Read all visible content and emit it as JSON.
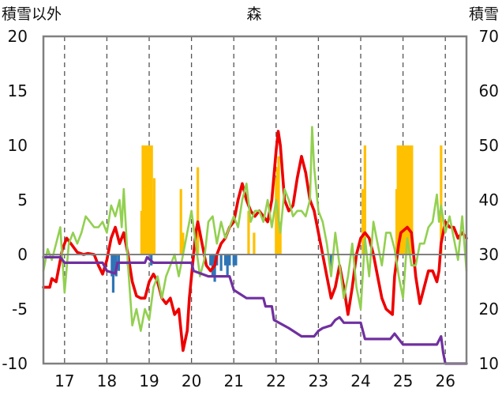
{
  "chart_data": {
    "type": "line",
    "title": "森",
    "left_axis_title": "積雪以外",
    "right_axis_title": "積雪",
    "y_left": {
      "range": [
        -10,
        20
      ],
      "ticks": [
        "-10",
        "-5",
        "0",
        "5",
        "10",
        "15",
        "20"
      ]
    },
    "y_right": {
      "range": [
        10,
        70
      ],
      "ticks": [
        "10",
        "20",
        "30",
        "40",
        "50",
        "60",
        "70"
      ]
    },
    "x": {
      "range": [
        16.5,
        26.5
      ],
      "tick_labels": [
        "17",
        "18",
        "19",
        "20",
        "21",
        "22",
        "23",
        "24",
        "25",
        "26"
      ]
    },
    "grid": {
      "vertical_dashed": true,
      "horizontal": false
    },
    "colors": {
      "red": "#ee0000",
      "green": "#92d050",
      "purple": "#7030a0",
      "orange": "#ffc000",
      "blue": "#2e75b6",
      "frame": "#808080"
    },
    "series": [
      {
        "axis": "left",
        "color_key": "red",
        "points": [
          [
            16.5,
            -3
          ],
          [
            16.65,
            -3
          ],
          [
            16.7,
            -2.2
          ],
          [
            16.8,
            -2.5
          ],
          [
            16.95,
            0.5
          ],
          [
            17.05,
            1.5
          ],
          [
            17.15,
            1
          ],
          [
            17.3,
            0.2
          ],
          [
            17.45,
            0
          ],
          [
            17.55,
            0.1
          ],
          [
            17.7,
            0
          ],
          [
            17.8,
            -1
          ],
          [
            17.9,
            -1.8
          ],
          [
            18.0,
            -0.5
          ],
          [
            18.1,
            1.5
          ],
          [
            18.2,
            2.5
          ],
          [
            18.3,
            1
          ],
          [
            18.4,
            2
          ],
          [
            18.5,
            0
          ],
          [
            18.6,
            -2.5
          ],
          [
            18.7,
            -3.8
          ],
          [
            18.8,
            -4
          ],
          [
            18.9,
            -4
          ],
          [
            19.0,
            -2.5
          ],
          [
            19.1,
            -1.8
          ],
          [
            19.2,
            -2.5
          ],
          [
            19.3,
            -4
          ],
          [
            19.4,
            -4.5
          ],
          [
            19.5,
            -4
          ],
          [
            19.6,
            -5.5
          ],
          [
            19.7,
            -5
          ],
          [
            19.8,
            -8.8
          ],
          [
            19.9,
            -7
          ],
          [
            19.95,
            -4
          ],
          [
            20.0,
            -2
          ],
          [
            20.1,
            2
          ],
          [
            20.15,
            3
          ],
          [
            20.25,
            1
          ],
          [
            20.35,
            -1
          ],
          [
            20.45,
            -1.5
          ],
          [
            20.55,
            -1
          ],
          [
            20.6,
            0
          ],
          [
            20.7,
            1
          ],
          [
            20.8,
            1.5
          ],
          [
            20.9,
            2.5
          ],
          [
            21.0,
            3
          ],
          [
            21.1,
            5
          ],
          [
            21.2,
            6.5
          ],
          [
            21.3,
            5
          ],
          [
            21.4,
            4
          ],
          [
            21.5,
            3.5
          ],
          [
            21.6,
            4
          ],
          [
            21.7,
            3.5
          ],
          [
            21.8,
            3
          ],
          [
            21.9,
            5
          ],
          [
            22.0,
            9.5
          ],
          [
            22.05,
            11.3
          ],
          [
            22.1,
            10
          ],
          [
            22.2,
            5
          ],
          [
            22.3,
            4
          ],
          [
            22.4,
            4.5
          ],
          [
            22.5,
            7
          ],
          [
            22.6,
            9
          ],
          [
            22.7,
            7.5
          ],
          [
            22.8,
            5
          ],
          [
            22.9,
            4
          ],
          [
            23.0,
            2
          ],
          [
            23.1,
            0
          ],
          [
            23.2,
            -2
          ],
          [
            23.3,
            -4
          ],
          [
            23.4,
            -3
          ],
          [
            23.5,
            -1
          ],
          [
            23.6,
            -3
          ],
          [
            23.7,
            -5.5
          ],
          [
            23.8,
            -3
          ],
          [
            23.9,
            0
          ],
          [
            24.0,
            1.5
          ],
          [
            24.1,
            2
          ],
          [
            24.2,
            1.5
          ],
          [
            24.3,
            0
          ],
          [
            24.4,
            -2
          ],
          [
            24.5,
            -4
          ],
          [
            24.6,
            -5
          ],
          [
            24.75,
            -5.5
          ],
          [
            24.8,
            -2
          ],
          [
            24.9,
            1
          ],
          [
            24.95,
            2
          ],
          [
            25.1,
            2.5
          ],
          [
            25.2,
            2
          ],
          [
            25.3,
            -2
          ],
          [
            25.4,
            -4.5
          ],
          [
            25.5,
            -3
          ],
          [
            25.6,
            -1.5
          ],
          [
            25.7,
            -1.5
          ],
          [
            25.8,
            -2.5
          ],
          [
            25.85,
            -1.5
          ],
          [
            25.9,
            1
          ],
          [
            26.0,
            3
          ],
          [
            26.1,
            2.5
          ],
          [
            26.2,
            2.5
          ],
          [
            26.3,
            1.5
          ],
          [
            26.4,
            2
          ],
          [
            26.5,
            1.5
          ]
        ]
      },
      {
        "axis": "left",
        "color_key": "green",
        "points": [
          [
            16.5,
            -1.5
          ],
          [
            16.6,
            0.5
          ],
          [
            16.7,
            -0.5
          ],
          [
            16.8,
            1
          ],
          [
            16.9,
            2.5
          ],
          [
            17.0,
            -3.5
          ],
          [
            17.1,
            1
          ],
          [
            17.2,
            2
          ],
          [
            17.3,
            1
          ],
          [
            17.4,
            2
          ],
          [
            17.5,
            3.5
          ],
          [
            17.6,
            3
          ],
          [
            17.7,
            2.5
          ],
          [
            17.8,
            2.5
          ],
          [
            17.9,
            3
          ],
          [
            18.0,
            2
          ],
          [
            18.1,
            4.5
          ],
          [
            18.2,
            3.5
          ],
          [
            18.3,
            5
          ],
          [
            18.35,
            2.5
          ],
          [
            18.4,
            6
          ],
          [
            18.5,
            -1
          ],
          [
            18.6,
            -6.5
          ],
          [
            18.7,
            -5
          ],
          [
            18.8,
            -7
          ],
          [
            18.9,
            -5
          ],
          [
            19.0,
            -6
          ],
          [
            19.1,
            -3
          ],
          [
            19.2,
            -2
          ],
          [
            19.3,
            -4
          ],
          [
            19.4,
            -2
          ],
          [
            19.5,
            -1
          ],
          [
            19.6,
            0
          ],
          [
            19.7,
            -2
          ],
          [
            19.8,
            0
          ],
          [
            19.9,
            2
          ],
          [
            20.0,
            4
          ],
          [
            20.1,
            1
          ],
          [
            20.2,
            -2
          ],
          [
            20.3,
            -0.5
          ],
          [
            20.4,
            3
          ],
          [
            20.5,
            3.5
          ],
          [
            20.6,
            1
          ],
          [
            20.7,
            3
          ],
          [
            20.8,
            1.5
          ],
          [
            20.9,
            2.5
          ],
          [
            21.0,
            3.5
          ],
          [
            21.1,
            2.5
          ],
          [
            21.2,
            5
          ],
          [
            21.3,
            6.5
          ],
          [
            21.4,
            3
          ],
          [
            21.5,
            4
          ],
          [
            21.6,
            4
          ],
          [
            21.7,
            3
          ],
          [
            21.8,
            5
          ],
          [
            21.9,
            2.5
          ],
          [
            22.0,
            5
          ],
          [
            22.1,
            2
          ],
          [
            22.2,
            6
          ],
          [
            22.3,
            5
          ],
          [
            22.4,
            3.5
          ],
          [
            22.5,
            4
          ],
          [
            22.6,
            4
          ],
          [
            22.7,
            3.5
          ],
          [
            22.8,
            5
          ],
          [
            22.85,
            11.7
          ],
          [
            22.9,
            8
          ],
          [
            23.0,
            4
          ],
          [
            23.1,
            3
          ],
          [
            23.2,
            1
          ],
          [
            23.3,
            -2
          ],
          [
            23.4,
            2
          ],
          [
            23.5,
            -1
          ],
          [
            23.6,
            -4
          ],
          [
            23.7,
            -2
          ],
          [
            23.8,
            1
          ],
          [
            23.9,
            -3
          ],
          [
            24.0,
            -5
          ],
          [
            24.1,
            1.5
          ],
          [
            24.2,
            -2
          ],
          [
            24.3,
            3
          ],
          [
            24.4,
            1
          ],
          [
            24.5,
            -1
          ],
          [
            24.6,
            2
          ],
          [
            24.7,
            2
          ],
          [
            24.8,
            0.5
          ],
          [
            24.9,
            -2
          ],
          [
            25.0,
            -4
          ],
          [
            25.1,
            1.5
          ],
          [
            25.2,
            -1
          ],
          [
            25.3,
            -1
          ],
          [
            25.4,
            1
          ],
          [
            25.5,
            1
          ],
          [
            25.6,
            2.5
          ],
          [
            25.7,
            3
          ],
          [
            25.8,
            5.5
          ],
          [
            25.85,
            3
          ],
          [
            25.9,
            4.5
          ],
          [
            26.0,
            2
          ],
          [
            26.1,
            3.5
          ],
          [
            26.2,
            1.5
          ],
          [
            26.3,
            -0.5
          ],
          [
            26.4,
            3.5
          ],
          [
            26.5,
            -1.5
          ]
        ]
      },
      {
        "axis": "right",
        "color_key": "purple",
        "points": [
          [
            16.5,
            29.5
          ],
          [
            16.9,
            29.5
          ],
          [
            17.0,
            28.5
          ],
          [
            17.9,
            28.5
          ],
          [
            18.0,
            27
          ],
          [
            18.2,
            26.5
          ],
          [
            18.25,
            28.5
          ],
          [
            18.9,
            28.5
          ],
          [
            18.95,
            29.5
          ],
          [
            19.1,
            28.5
          ],
          [
            20.0,
            28.5
          ],
          [
            20.05,
            27
          ],
          [
            20.4,
            26
          ],
          [
            20.9,
            26
          ],
          [
            21.0,
            23.5
          ],
          [
            21.3,
            22
          ],
          [
            21.7,
            22
          ],
          [
            21.75,
            20.5
          ],
          [
            21.9,
            20.5
          ],
          [
            21.95,
            18
          ],
          [
            22.3,
            16.5
          ],
          [
            22.6,
            15
          ],
          [
            22.9,
            15
          ],
          [
            23.0,
            16
          ],
          [
            23.1,
            16.5
          ],
          [
            23.3,
            17
          ],
          [
            23.4,
            18
          ],
          [
            23.5,
            18.5
          ],
          [
            23.6,
            17.5
          ],
          [
            24.0,
            17.5
          ],
          [
            24.1,
            14.5
          ],
          [
            24.7,
            14.5
          ],
          [
            24.8,
            15.5
          ],
          [
            25.0,
            13.5
          ],
          [
            25.8,
            13.5
          ],
          [
            25.9,
            15
          ],
          [
            25.95,
            12
          ],
          [
            26.0,
            10
          ],
          [
            26.5,
            10
          ]
        ]
      }
    ],
    "bars": [
      {
        "axis": "right",
        "color_key": "orange",
        "values": [
          [
            18.82,
            38
          ],
          [
            18.85,
            50
          ],
          [
            18.88,
            50
          ],
          [
            18.91,
            50
          ],
          [
            18.94,
            50
          ],
          [
            18.97,
            50
          ],
          [
            19.0,
            50
          ],
          [
            19.03,
            50
          ],
          [
            19.06,
            50
          ],
          [
            19.08,
            40
          ],
          [
            19.12,
            44
          ],
          [
            19.75,
            42
          ],
          [
            19.8,
            34
          ],
          [
            20.15,
            46
          ],
          [
            21.35,
            38
          ],
          [
            21.48,
            34
          ],
          [
            22.0,
            44
          ],
          [
            22.03,
            46
          ],
          [
            22.06,
            48
          ],
          [
            22.1,
            36
          ],
          [
            23.12,
            30
          ],
          [
            24.05,
            42
          ],
          [
            24.1,
            50
          ],
          [
            24.85,
            42
          ],
          [
            24.88,
            50
          ],
          [
            24.91,
            50
          ],
          [
            24.94,
            50
          ],
          [
            24.97,
            50
          ],
          [
            25.0,
            50
          ],
          [
            25.03,
            50
          ],
          [
            25.06,
            50
          ],
          [
            25.09,
            50
          ],
          [
            25.12,
            50
          ],
          [
            25.15,
            50
          ],
          [
            25.18,
            50
          ],
          [
            25.21,
            50
          ],
          [
            25.9,
            50
          ]
        ]
      },
      {
        "axis": "left",
        "color_key": "blue",
        "values": [
          [
            18.12,
            -2
          ],
          [
            18.15,
            -3.5
          ],
          [
            18.18,
            -1.5
          ],
          [
            18.22,
            -2
          ],
          [
            18.28,
            -1.5
          ],
          [
            18.5,
            -1
          ],
          [
            19.05,
            -1
          ],
          [
            20.45,
            -1
          ],
          [
            20.5,
            -2
          ],
          [
            20.55,
            -2.5
          ],
          [
            20.6,
            -1
          ],
          [
            20.7,
            -1.5
          ],
          [
            20.8,
            -1
          ],
          [
            20.85,
            -2
          ],
          [
            20.9,
            -1
          ],
          [
            21.0,
            -1
          ],
          [
            21.05,
            -1
          ],
          [
            23.3,
            -1.5
          ]
        ]
      }
    ]
  }
}
